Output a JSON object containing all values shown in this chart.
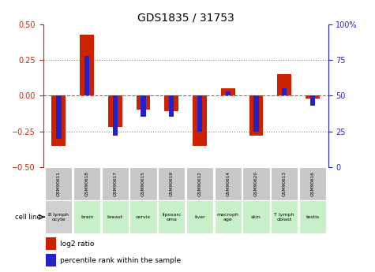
{
  "title": "GDS1835 / 31753",
  "samples": [
    "GSM90611",
    "GSM90618",
    "GSM90617",
    "GSM90615",
    "GSM90619",
    "GSM90612",
    "GSM90614",
    "GSM90620",
    "GSM90613",
    "GSM90616"
  ],
  "cell_lines": [
    "B lymph\nocyte",
    "brain",
    "breast",
    "cervix",
    "liposarc\noma",
    "liver",
    "macroph\nage",
    "skin",
    "T lymph\noblast",
    "testis"
  ],
  "cell_bg": [
    "#d0d0d0",
    "#c8f0c8",
    "#c8f0c8",
    "#c8f0c8",
    "#c8f0c8",
    "#c8f0c8",
    "#c8f0c8",
    "#c8f0c8",
    "#c8f0c8",
    "#c8f0c8"
  ],
  "log2_ratio": [
    -0.35,
    0.43,
    -0.22,
    -0.1,
    -0.11,
    -0.35,
    0.05,
    -0.28,
    0.15,
    -0.02
  ],
  "percentile_rank": [
    20,
    78,
    22,
    35,
    35,
    25,
    53,
    25,
    55,
    43
  ],
  "bar_color_red": "#cc2200",
  "bar_color_blue": "#2222cc",
  "ylim_left": [
    -0.5,
    0.5
  ],
  "ylim_right": [
    0,
    100
  ],
  "yticks_left": [
    -0.5,
    -0.25,
    0,
    0.25,
    0.5
  ],
  "yticks_right": [
    0,
    25,
    50,
    75,
    100
  ],
  "ytick_labels_right": [
    "0",
    "25",
    "50",
    "75",
    "100%"
  ],
  "sample_bg": "#c8c8c8",
  "legend_log2": "log2 ratio",
  "legend_pct": "percentile rank within the sample",
  "red_bar_width": 0.5,
  "blue_bar_width": 0.18
}
